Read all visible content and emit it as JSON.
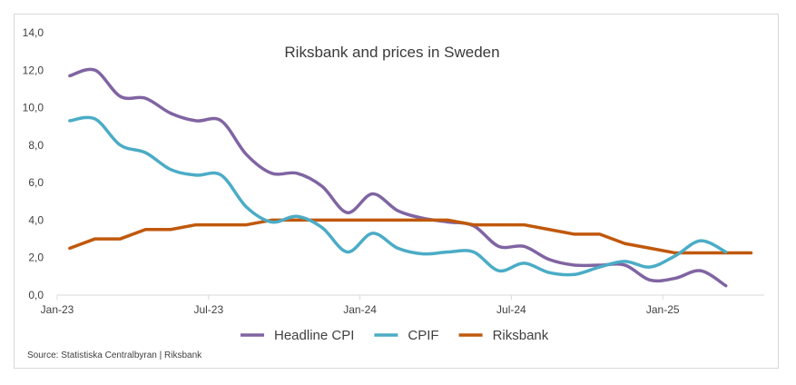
{
  "chart_data": {
    "type": "line",
    "title": "Riksbank and prices in Sweden",
    "xlabel": "",
    "ylabel": "",
    "ylim": [
      0,
      14
    ],
    "yticks": [
      "0,0",
      "2,0",
      "4,0",
      "6,0",
      "8,0",
      "10,0",
      "12,0",
      "14,0"
    ],
    "ytick_values": [
      0,
      2,
      4,
      6,
      8,
      10,
      12,
      14
    ],
    "xticks": [
      {
        "label": "Jan-23",
        "month_index": 0
      },
      {
        "label": "Jul-23",
        "month_index": 6
      },
      {
        "label": "Jan-24",
        "month_index": 12
      },
      {
        "label": "Jul-24",
        "month_index": 18
      },
      {
        "label": "Jan-25",
        "month_index": 24
      }
    ],
    "x": [
      "Jan-23",
      "Feb-23",
      "Mar-23",
      "Apr-23",
      "May-23",
      "Jun-23",
      "Jul-23",
      "Aug-23",
      "Sep-23",
      "Oct-23",
      "Nov-23",
      "Dec-23",
      "Jan-24",
      "Feb-24",
      "Mar-24",
      "Apr-24",
      "May-24",
      "Jun-24",
      "Jul-24",
      "Aug-24",
      "Sep-24",
      "Oct-24",
      "Nov-24",
      "Dec-24",
      "Jan-25",
      "Feb-25",
      "Mar-25",
      "Apr-25"
    ],
    "grid": false,
    "legend_position": "bottom",
    "series": [
      {
        "name": "Headline CPI",
        "color": "#8064a2",
        "smooth": true,
        "values": [
          11.7,
          12.0,
          10.6,
          10.5,
          9.7,
          9.3,
          9.3,
          7.5,
          6.5,
          6.5,
          5.8,
          4.4,
          5.4,
          4.5,
          4.1,
          3.9,
          3.7,
          2.6,
          2.6,
          1.9,
          1.6,
          1.6,
          1.6,
          0.8,
          0.9,
          1.3,
          0.5
        ]
      },
      {
        "name": "CPIF",
        "color": "#4bacc6",
        "smooth": true,
        "values": [
          9.3,
          9.4,
          8.0,
          7.6,
          6.7,
          6.4,
          6.4,
          4.7,
          3.9,
          4.2,
          3.6,
          2.3,
          3.3,
          2.5,
          2.2,
          2.3,
          2.3,
          1.3,
          1.7,
          1.2,
          1.1,
          1.5,
          1.8,
          1.5,
          2.1,
          2.9,
          2.3
        ]
      },
      {
        "name": "Riksbank",
        "color": "#c0580b",
        "smooth": false,
        "values": [
          2.5,
          3.0,
          3.0,
          3.5,
          3.5,
          3.75,
          3.75,
          3.75,
          4.0,
          4.0,
          4.0,
          4.0,
          4.0,
          4.0,
          4.0,
          4.0,
          3.75,
          3.75,
          3.75,
          3.5,
          3.25,
          3.25,
          2.75,
          2.5,
          2.25,
          2.25,
          2.25,
          2.25
        ]
      }
    ],
    "source": "Source: Statistiska Centralbyran | Riksbank"
  }
}
